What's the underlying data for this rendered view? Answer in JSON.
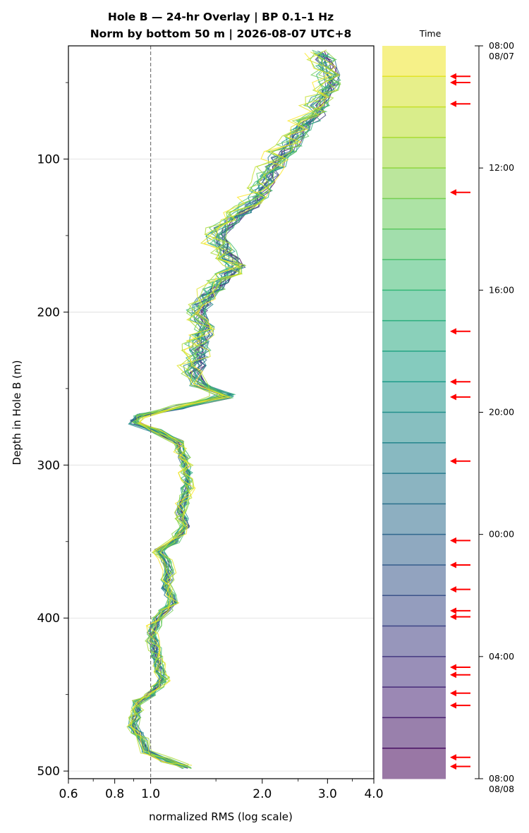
{
  "chart_data": {
    "type": "line",
    "title": "Hole B — 24-hr Overlay  |  BP 0.1–1 Hz",
    "subtitle": "Norm by bottom 50 m  |  2026-08-07 UTC+8",
    "xlabel": "normalized RMS  (log scale)",
    "ylabel": "Depth in Hole B (m)",
    "x_scale": "log",
    "xlim": [
      0.6,
      4.0
    ],
    "ylim": [
      505,
      26
    ],
    "y_inverted": true,
    "x_tick_labels": [
      "0.6",
      "0.8",
      "1.0",
      "2.0",
      "3.0",
      "4.0"
    ],
    "y_tick_labels": [
      "100",
      "200",
      "300",
      "400",
      "500"
    ],
    "grid": true,
    "reference_line": {
      "x": 1.0,
      "style": "dashed"
    },
    "colormap": "viridis",
    "colorbar": {
      "label": "Time",
      "tick_labels": [
        "08:00\n08/07",
        "12:00",
        "16:00",
        "20:00",
        "00:00",
        "04:00",
        "08:00\n08/08"
      ],
      "bands": 24,
      "arrow_hours": [
        1.0,
        1.2,
        1.9,
        4.8,
        9.35,
        11.0,
        11.5,
        13.6,
        16.2,
        17.0,
        17.8,
        18.5,
        18.7,
        20.35,
        20.6,
        21.2,
        21.6,
        23.3,
        23.6
      ]
    },
    "profile": {
      "depth": [
        30,
        40,
        50,
        60,
        70,
        80,
        90,
        100,
        110,
        120,
        130,
        140,
        150,
        160,
        170,
        180,
        190,
        200,
        210,
        220,
        230,
        240,
        248,
        255,
        262,
        268,
        272,
        278,
        285,
        290,
        300,
        310,
        320,
        330,
        340,
        350,
        356,
        362,
        370,
        380,
        390,
        400,
        410,
        420,
        430,
        440,
        450,
        455,
        460,
        470,
        480,
        487,
        493,
        497
      ],
      "rms": [
        2.85,
        3.0,
        3.05,
        2.9,
        2.8,
        2.55,
        2.4,
        2.2,
        2.1,
        2.0,
        1.85,
        1.65,
        1.5,
        1.6,
        1.7,
        1.55,
        1.4,
        1.35,
        1.4,
        1.35,
        1.35,
        1.3,
        1.35,
        1.6,
        1.2,
        0.93,
        0.9,
        1.05,
        1.2,
        1.2,
        1.25,
        1.25,
        1.25,
        1.2,
        1.25,
        1.15,
        1.05,
        1.1,
        1.12,
        1.1,
        1.15,
        1.05,
        1.0,
        1.03,
        1.05,
        1.08,
        1.0,
        0.92,
        0.92,
        0.9,
        0.95,
        0.98,
        1.1,
        1.25
      ]
    },
    "series_count": 24
  }
}
